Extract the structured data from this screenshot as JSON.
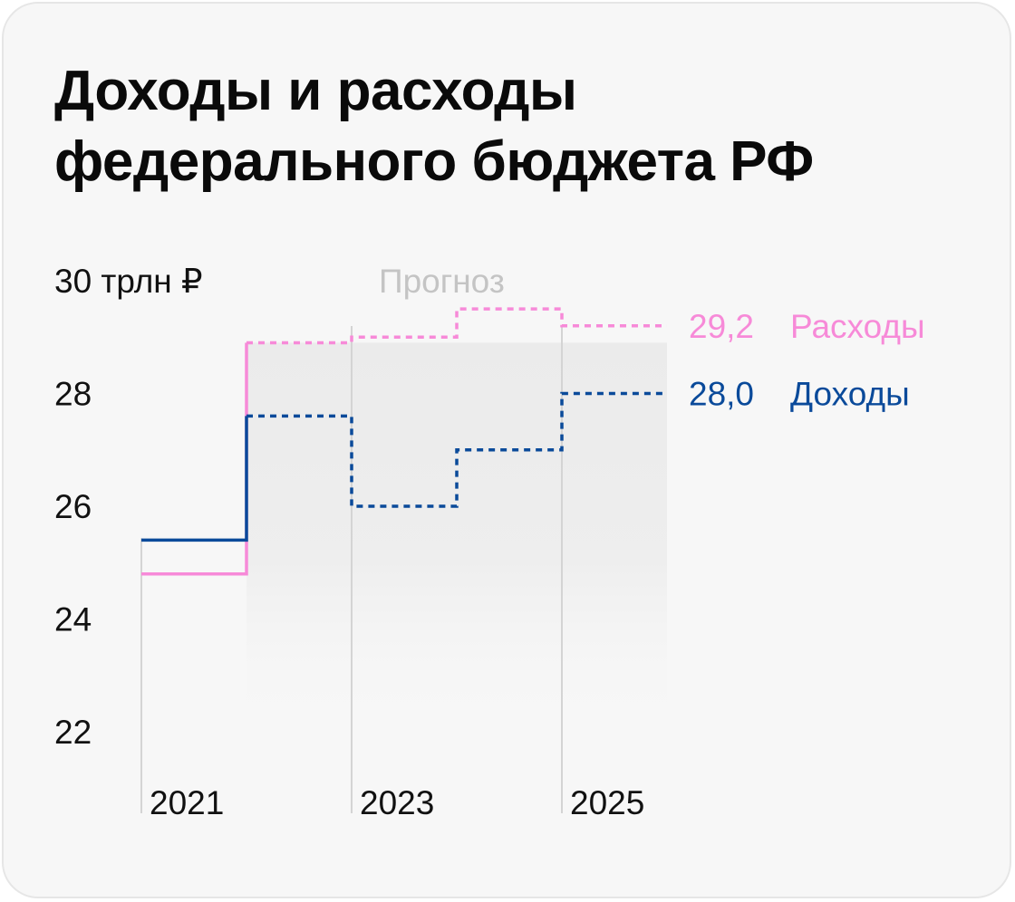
{
  "title_lines": [
    "Доходы и расходы",
    "федерального бюджета РФ"
  ],
  "forecast_label": "Прогноз",
  "colors": {
    "expenses": "#f78ad8",
    "revenues": "#0a4a9a",
    "background": "#f7f7f7",
    "forecast_band": "#ebebeb"
  },
  "chart_data": {
    "type": "line",
    "step": true,
    "x": [
      2021,
      2022,
      2023,
      2024,
      2025
    ],
    "x_tick_labels": [
      "2021",
      "2023",
      "2025"
    ],
    "y_tick_labels": [
      "30 трлн ₽",
      "28",
      "26",
      "24",
      "22"
    ],
    "y_ticks": [
      30,
      28,
      26,
      24,
      22
    ],
    "ylim": [
      22,
      30
    ],
    "forecast_from": 2022,
    "series": [
      {
        "name": "Расходы",
        "values": [
          24.8,
          28.9,
          29.0,
          29.5,
          29.2
        ],
        "end_label": "29,2",
        "color": "#f78ad8"
      },
      {
        "name": "Доходы",
        "values": [
          25.4,
          27.6,
          26.0,
          27.0,
          28.0
        ],
        "end_label": "28,0",
        "color": "#0a4a9a"
      }
    ]
  }
}
